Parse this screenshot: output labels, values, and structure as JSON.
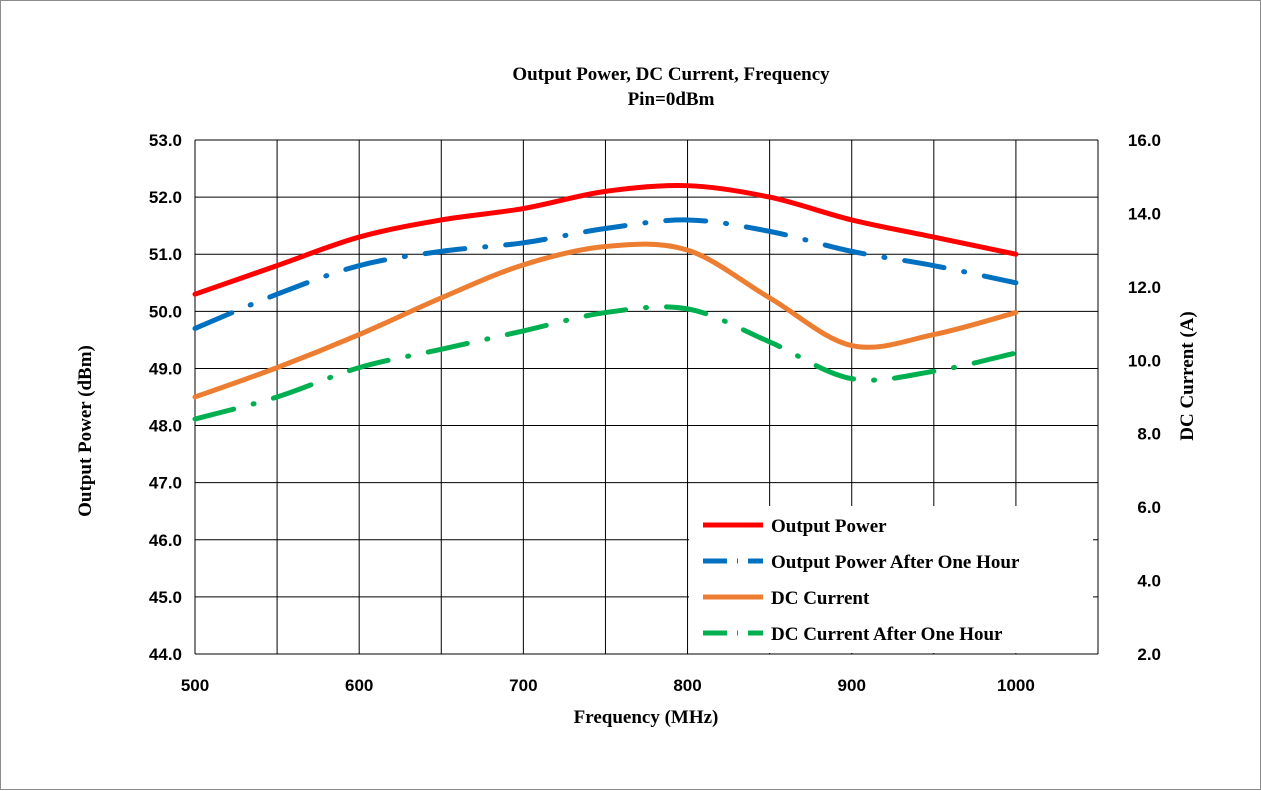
{
  "chart_data": {
    "type": "line",
    "title": "Output Power, DC Current,  Frequency",
    "subtitle": "Pin=0dBm",
    "xlabel": "Frequency (MHz)",
    "ylabel": "Output Power (dBm)",
    "y2label": "DC Current  (A)",
    "xlim": [
      500,
      1050
    ],
    "ylim": [
      44.0,
      53.0
    ],
    "y2lim": [
      2.0,
      16.0
    ],
    "x_ticks": [
      "500",
      "600",
      "700",
      "800",
      "900",
      "1000"
    ],
    "y_ticks": [
      "53.0",
      "52.0",
      "51.0",
      "50.0",
      "49.0",
      "48.0",
      "47.0",
      "46.0",
      "45.0",
      "44.0"
    ],
    "y2_ticks": [
      "16.0",
      "14.0",
      "12.0",
      "10.0",
      "8.0",
      "6.0",
      "4.0",
      "2.0"
    ],
    "grid": true,
    "legend_position": "bottom-right",
    "series": [
      {
        "name": "Output Power",
        "axis": "left",
        "color": "#ff0000",
        "dash": "solid",
        "x": [
          500,
          550,
          600,
          650,
          700,
          750,
          800,
          850,
          900,
          950,
          1000
        ],
        "values": [
          50.3,
          50.8,
          51.3,
          51.6,
          51.8,
          52.1,
          52.2,
          52.0,
          51.6,
          51.3,
          51.0
        ]
      },
      {
        "name": "Output Power After One Hour",
        "axis": "left",
        "color": "#0070c0",
        "dash": "dashdot",
        "x": [
          500,
          550,
          600,
          650,
          700,
          750,
          800,
          850,
          900,
          950,
          1000
        ],
        "values": [
          49.7,
          50.3,
          50.8,
          51.05,
          51.2,
          51.45,
          51.6,
          51.4,
          51.05,
          50.8,
          50.5
        ]
      },
      {
        "name": "DC Current",
        "axis": "right",
        "color": "#ed7d31",
        "dash": "solid",
        "x": [
          500,
          550,
          600,
          650,
          700,
          750,
          800,
          850,
          900,
          950,
          1000
        ],
        "values": [
          9.0,
          9.8,
          10.7,
          11.7,
          12.6,
          13.1,
          13.0,
          11.7,
          10.4,
          10.7,
          11.3
        ]
      },
      {
        "name": "DC Current After One Hour",
        "axis": "right",
        "color": "#00b050",
        "dash": "dashdot",
        "x": [
          500,
          550,
          600,
          650,
          700,
          750,
          800,
          850,
          900,
          950,
          1000
        ],
        "values": [
          8.4,
          9.0,
          9.8,
          10.3,
          10.8,
          11.3,
          11.4,
          10.5,
          9.5,
          9.7,
          10.2
        ]
      }
    ]
  }
}
